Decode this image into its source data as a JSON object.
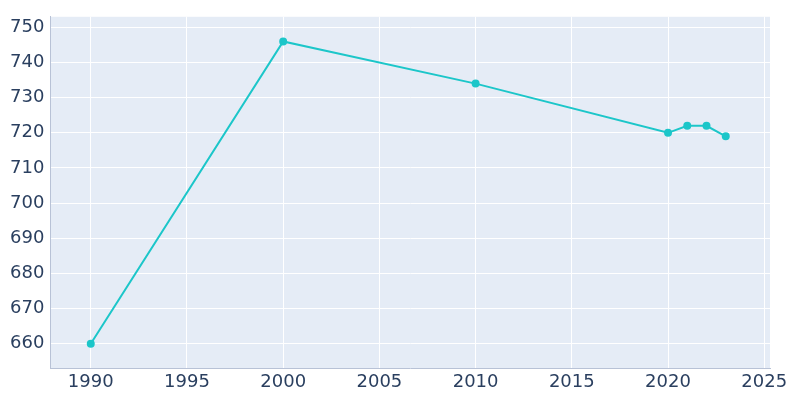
{
  "chart_data": {
    "type": "line",
    "x": [
      1990,
      2000,
      2010,
      2020,
      2021,
      2022,
      2023
    ],
    "values": [
      660,
      746,
      734,
      720,
      722,
      722,
      719
    ],
    "color": "#1cc6c9",
    "marker": "circle",
    "xlim": [
      1987.9,
      2025.3
    ],
    "xticks": [
      1990,
      1995,
      2000,
      2005,
      2010,
      2015,
      2020,
      2025
    ],
    "ylim": [
      653,
      753
    ],
    "yticks": [
      660,
      670,
      680,
      690,
      700,
      710,
      720,
      730,
      740,
      750
    ],
    "grid": true
  }
}
